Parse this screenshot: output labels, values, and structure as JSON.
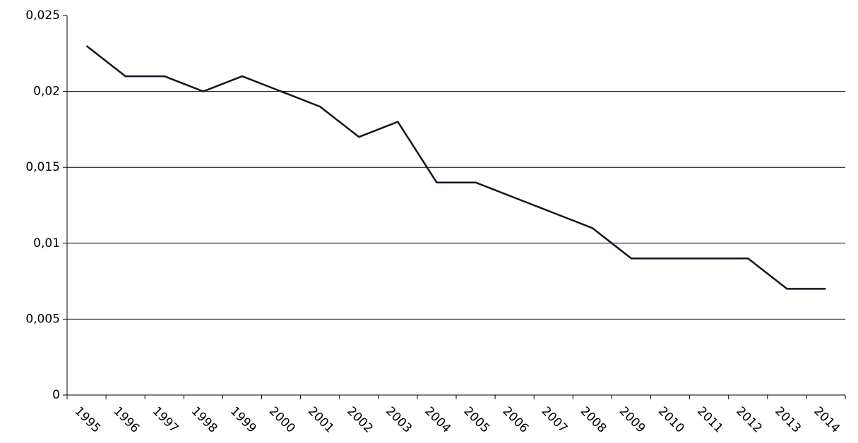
{
  "chart_data": {
    "type": "line",
    "categories": [
      "1995",
      "1996",
      "1997",
      "1998",
      "1999",
      "2000",
      "2001",
      "2002",
      "2003",
      "2004",
      "2005",
      "2006",
      "2007",
      "2008",
      "2009",
      "2010",
      "2011",
      "2012",
      "2013",
      "2014"
    ],
    "values": [
      0.023,
      0.021,
      0.021,
      0.02,
      0.021,
      0.02,
      0.019,
      0.017,
      0.018,
      0.014,
      0.014,
      0.013,
      0.012,
      0.011,
      0.009,
      0.009,
      0.009,
      0.009,
      0.007,
      0.007
    ],
    "color": "#1c0f21",
    "ylim": [
      0,
      0.025
    ],
    "yticks": [
      0,
      {
        "value": 0.005,
        "label": "0,005"
      },
      {
        "value": 0.01,
        "label": "0,01"
      },
      {
        "value": 0.015,
        "label": "0,015"
      },
      {
        "value": 0.02,
        "label": "0,02"
      },
      {
        "value": 0.025,
        "label": "0,025"
      }
    ],
    "grid": true
  }
}
